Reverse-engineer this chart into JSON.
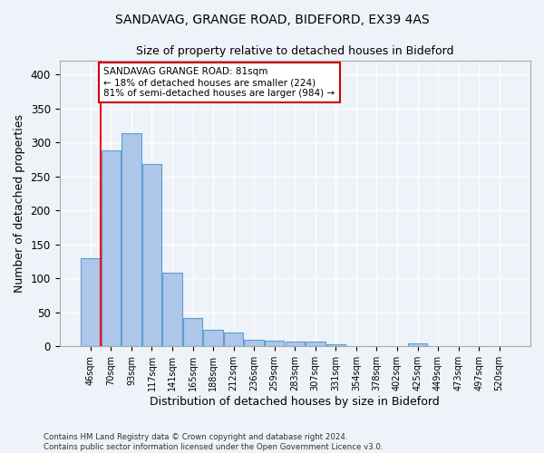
{
  "title1": "SANDAVAG, GRANGE ROAD, BIDEFORD, EX39 4AS",
  "title2": "Size of property relative to detached houses in Bideford",
  "xlabel": "Distribution of detached houses by size in Bideford",
  "ylabel": "Number of detached properties",
  "categories": [
    "46sqm",
    "70sqm",
    "93sqm",
    "117sqm",
    "141sqm",
    "165sqm",
    "188sqm",
    "212sqm",
    "236sqm",
    "259sqm",
    "283sqm",
    "307sqm",
    "331sqm",
    "354sqm",
    "378sqm",
    "402sqm",
    "425sqm",
    "449sqm",
    "473sqm",
    "497sqm",
    "520sqm"
  ],
  "values": [
    130,
    288,
    313,
    268,
    108,
    42,
    25,
    21,
    10,
    9,
    7,
    7,
    3,
    0,
    0,
    0,
    5,
    0,
    0,
    0,
    0
  ],
  "bar_color": "#aec6e8",
  "bar_edge_color": "#5a9fd4",
  "annotation_text": "SANDAVAG GRANGE ROAD: 81sqm\n← 18% of detached houses are smaller (224)\n81% of semi-detached houses are larger (984) →",
  "redline_x": 0.5,
  "ylim": [
    0,
    420
  ],
  "yticks": [
    0,
    50,
    100,
    150,
    200,
    250,
    300,
    350,
    400
  ],
  "footer": "Contains HM Land Registry data © Crown copyright and database right 2024.\nContains public sector information licensed under the Open Government Licence v3.0.",
  "background_color": "#eef2f9",
  "grid_color": "#ffffff",
  "annotation_box_facecolor": "#ffffff",
  "annotation_box_edgecolor": "#cc0000"
}
